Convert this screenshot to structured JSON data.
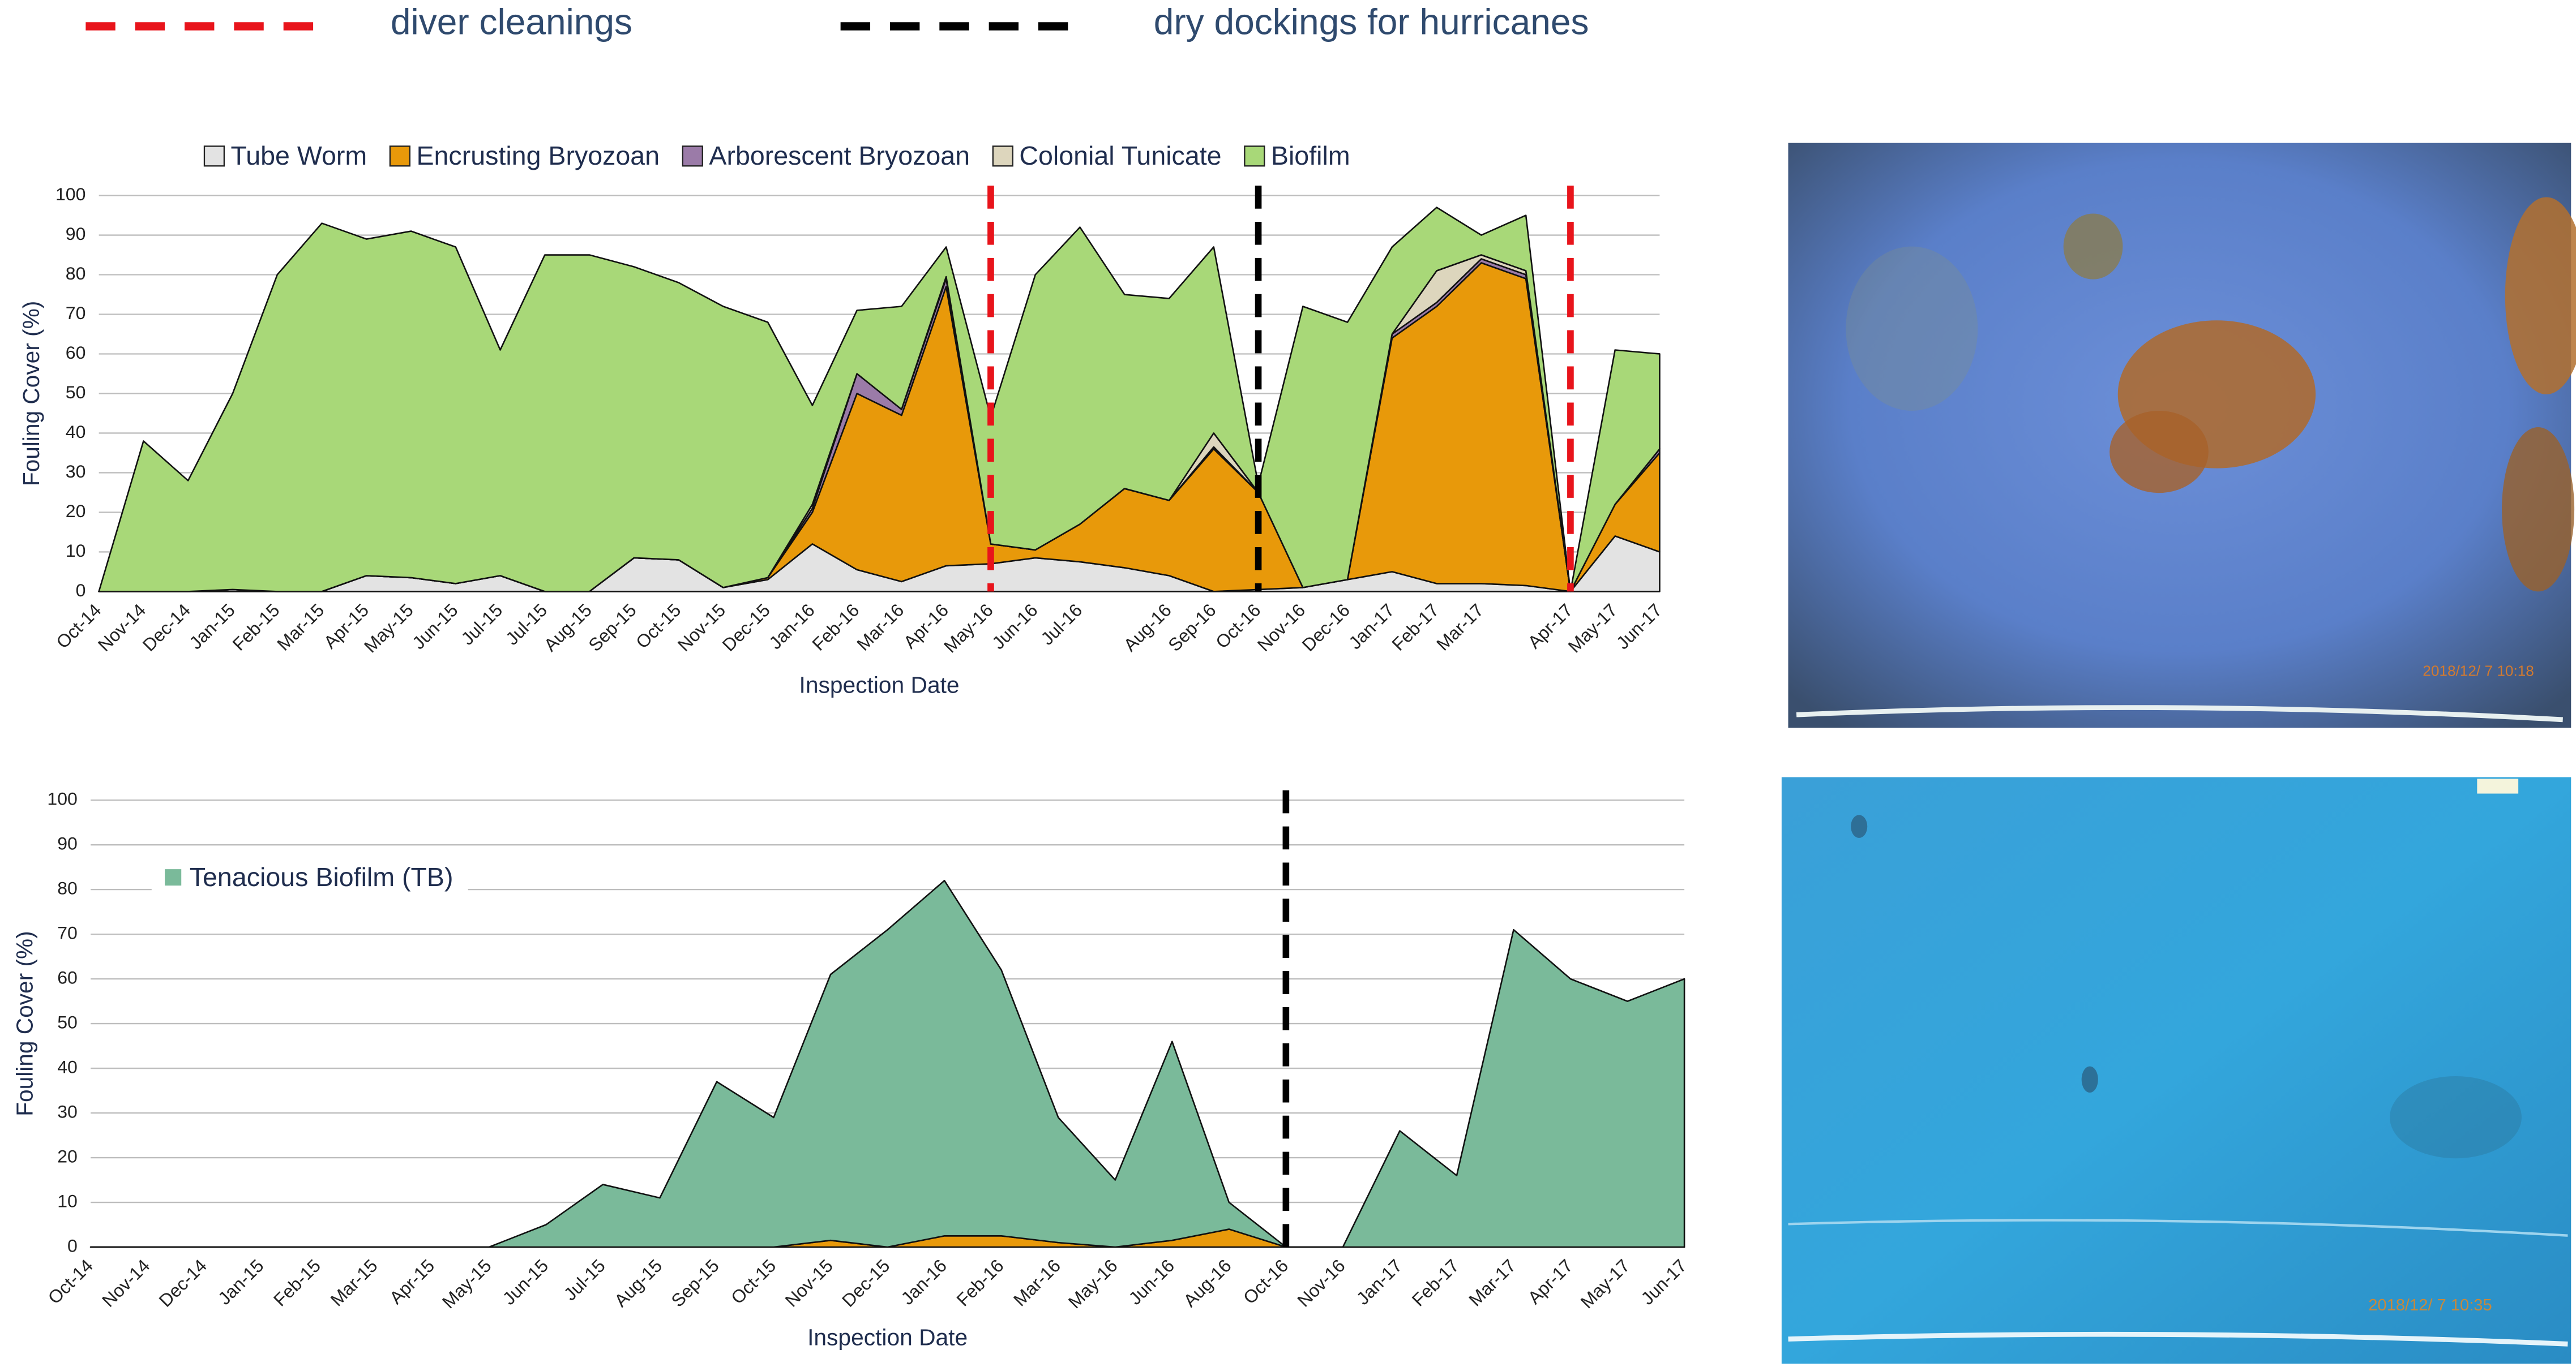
{
  "chart_data": [
    {
      "type": "stacked_area",
      "categories": [
        "Oct-14",
        "Nov-14",
        "Dec-14",
        "Jan-15",
        "Feb-15",
        "Mar-15",
        "Apr-15",
        "May-15",
        "Jun-15",
        "Jul-15",
        "Jul-15",
        "Aug-15",
        "Sep-15",
        "Oct-15",
        "Nov-15",
        "Dec-15",
        "Jan-16",
        "Feb-16",
        "Mar-16",
        "Apr-16",
        "May-16",
        "Jun-16",
        "Jul-16",
        null,
        "Aug-16",
        "Sep-16",
        "Oct-16",
        "Nov-16",
        "Dec-16",
        "Jan-17",
        "Feb-17",
        "Mar-17",
        null,
        "Apr-17",
        "May-17",
        "Jun-17"
      ],
      "series": [
        {
          "name": "Tube Worm",
          "color": "#e3e3e3",
          "values": [
            0,
            0,
            0,
            0.5,
            0,
            0,
            4,
            3.5,
            2,
            4,
            0,
            0,
            8.5,
            8,
            1,
            3,
            12,
            5.5,
            2.5,
            6.5,
            7,
            8.5,
            7.5,
            6,
            4,
            0,
            0.5,
            1,
            3,
            5,
            2,
            2,
            1.5,
            0,
            14,
            10
          ]
        },
        {
          "name": "Encrusting Bryozoan",
          "color": "#e8990a",
          "values": [
            0,
            0,
            0,
            0,
            0,
            0,
            0,
            0,
            0,
            0,
            0,
            0,
            0,
            0,
            0,
            0.5,
            8,
            44.5,
            42,
            70.5,
            5,
            2,
            9.5,
            20,
            19,
            36,
            24.5,
            0,
            0,
            59,
            70,
            81,
            77.5,
            0,
            8,
            25
          ]
        },
        {
          "name": "Arborescent Bryozoan",
          "color": "#9b7ba8",
          "values": [
            0,
            0,
            0,
            0,
            0,
            0,
            0,
            0,
            0,
            0,
            0,
            0,
            0,
            0,
            0,
            0,
            1,
            5,
            1.5,
            2,
            0,
            0,
            0,
            0,
            0,
            0.5,
            0,
            0,
            0,
            1,
            1,
            1,
            1,
            0,
            0,
            1
          ]
        },
        {
          "name": "Colonial Tunicate",
          "color": "#ddd6bd",
          "values": [
            0,
            0,
            0,
            0,
            0,
            0,
            0,
            0,
            0,
            0,
            0,
            0,
            0,
            0,
            0,
            0,
            1,
            0,
            0,
            0.5,
            0,
            0,
            0,
            0,
            0,
            3.5,
            0,
            0,
            0,
            0,
            8,
            1,
            1,
            0,
            0,
            0
          ]
        },
        {
          "name": "Biofilm",
          "color": "#a8d878",
          "values": [
            0,
            38,
            28,
            49.5,
            80,
            93,
            85,
            87.5,
            85,
            57,
            85,
            85,
            73.5,
            70,
            71,
            64.5,
            25,
            16,
            26,
            7.5,
            32,
            69.5,
            75,
            49,
            51,
            47,
            2,
            71,
            65,
            22,
            16,
            5,
            14,
            0,
            39,
            24
          ]
        }
      ],
      "ylim": [
        0,
        100
      ],
      "yticks": [
        0,
        10,
        20,
        30,
        40,
        50,
        60,
        70,
        80,
        90,
        100
      ],
      "grid": true,
      "ylabel": "Fouling Cover (%)",
      "xlabel": "Inspection Date",
      "event_lines": [
        {
          "name": "diver cleanings",
          "color": "#e8141b",
          "at": [
            20,
            33
          ]
        },
        {
          "name": "dry dockings for hurricanes",
          "color": "#000000",
          "at": [
            26
          ]
        }
      ]
    },
    {
      "type": "stacked_area",
      "categories": [
        "Oct-14",
        "Nov-14",
        "Dec-14",
        "Jan-15",
        "Feb-15",
        "Mar-15",
        "Apr-15",
        "May-15",
        "Jun-15",
        "Jul-15",
        "Aug-15",
        "Sep-15",
        "Oct-15",
        "Nov-15",
        "Dec-15",
        "Jan-16",
        "Feb-16",
        "Mar-16",
        "May-16",
        "Jun-16",
        "Aug-16",
        "Oct-16",
        "Nov-16",
        "Jan-17",
        "Feb-17",
        "Mar-17",
        "Apr-17",
        "May-17",
        "Jun-17"
      ],
      "series": [
        {
          "color": "#e8990a",
          "values": [
            0,
            0,
            0,
            0,
            0,
            0,
            0,
            0,
            0,
            0,
            0,
            0,
            0,
            1.5,
            0,
            2.5,
            2.5,
            1,
            0,
            1.5,
            4,
            0,
            0,
            0,
            0,
            0,
            0,
            0,
            0
          ]
        },
        {
          "name": "Tenacious Biofilm (TB)",
          "color": "#7aba9a",
          "values": [
            0,
            0,
            0,
            0,
            0,
            0,
            0,
            0,
            5,
            14,
            11,
            37,
            29,
            59.5,
            71,
            79.5,
            59.5,
            28,
            15,
            44.5,
            6,
            0,
            0,
            26,
            16,
            71,
            60,
            55,
            60
          ]
        }
      ],
      "ylim": [
        0,
        100
      ],
      "yticks": [
        0,
        10,
        20,
        30,
        40,
        50,
        60,
        70,
        80,
        90,
        100
      ],
      "grid": true,
      "ylabel": "Fouling Cover (%)",
      "xlabel": "Inspection Date",
      "event_lines": [
        {
          "color": "#000000",
          "at": [
            21
          ]
        }
      ]
    }
  ],
  "photos": [
    {
      "timestamp": "2018/12/ 7 10:18"
    },
    {
      "timestamp": "2018/12/ 7 10:35"
    }
  ]
}
